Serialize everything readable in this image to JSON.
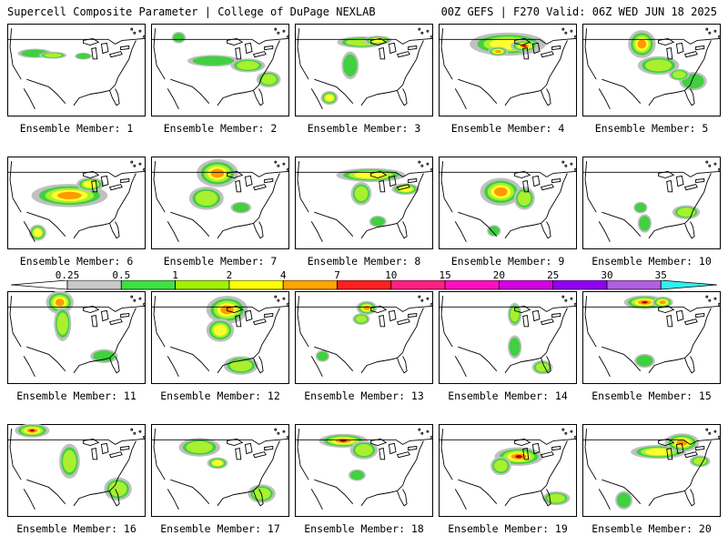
{
  "header": {
    "title": "Supercell Composite Parameter | College of DuPage NEXLAB",
    "run_info": "00Z GEFS | F270 Valid: 06Z WED JUN 18 2025"
  },
  "panels": [
    {
      "label": "Ensemble Member: 1",
      "blobs": [
        [
          0.2,
          0.32,
          0.1,
          0.04,
          1
        ],
        [
          0.33,
          0.34,
          0.08,
          0.03,
          2
        ],
        [
          0.55,
          0.35,
          0.05,
          0.03,
          1
        ]
      ]
    },
    {
      "label": "Ensemble Member: 2",
      "blobs": [
        [
          0.45,
          0.4,
          0.15,
          0.05,
          1
        ],
        [
          0.7,
          0.45,
          0.1,
          0.06,
          2
        ],
        [
          0.85,
          0.6,
          0.07,
          0.07,
          2
        ],
        [
          0.2,
          0.15,
          0.04,
          0.05,
          1
        ]
      ]
    },
    {
      "label": "Ensemble Member: 3",
      "blobs": [
        [
          0.48,
          0.2,
          0.14,
          0.05,
          2
        ],
        [
          0.6,
          0.18,
          0.08,
          0.04,
          3
        ],
        [
          0.4,
          0.45,
          0.05,
          0.12,
          1
        ],
        [
          0.25,
          0.8,
          0.05,
          0.06,
          3
        ]
      ]
    },
    {
      "label": "Ensemble Member: 4",
      "blobs": [
        [
          0.5,
          0.22,
          0.22,
          0.1,
          3
        ],
        [
          0.62,
          0.24,
          0.08,
          0.05,
          5
        ],
        [
          0.43,
          0.3,
          0.06,
          0.04,
          4
        ]
      ]
    },
    {
      "label": "Ensemble Member: 5",
      "blobs": [
        [
          0.43,
          0.22,
          0.08,
          0.12,
          4
        ],
        [
          0.55,
          0.45,
          0.12,
          0.08,
          2
        ],
        [
          0.8,
          0.62,
          0.08,
          0.08,
          1
        ],
        [
          0.7,
          0.55,
          0.06,
          0.05,
          2
        ]
      ]
    },
    {
      "label": "Ensemble Member: 6",
      "blobs": [
        [
          0.45,
          0.42,
          0.22,
          0.1,
          4
        ],
        [
          0.6,
          0.3,
          0.08,
          0.06,
          3
        ],
        [
          0.22,
          0.82,
          0.05,
          0.07,
          3
        ]
      ]
    },
    {
      "label": "Ensemble Member: 7",
      "blobs": [
        [
          0.48,
          0.18,
          0.12,
          0.12,
          4
        ],
        [
          0.4,
          0.45,
          0.1,
          0.1,
          2
        ],
        [
          0.65,
          0.55,
          0.06,
          0.05,
          1
        ]
      ]
    },
    {
      "label": "Ensemble Member: 8",
      "blobs": [
        [
          0.55,
          0.2,
          0.2,
          0.06,
          3
        ],
        [
          0.48,
          0.4,
          0.06,
          0.1,
          2
        ],
        [
          0.8,
          0.35,
          0.08,
          0.05,
          3
        ],
        [
          0.6,
          0.7,
          0.05,
          0.05,
          1
        ]
      ]
    },
    {
      "label": "Ensemble Member: 9",
      "blobs": [
        [
          0.45,
          0.38,
          0.12,
          0.12,
          4
        ],
        [
          0.62,
          0.45,
          0.06,
          0.1,
          2
        ],
        [
          0.4,
          0.8,
          0.04,
          0.05,
          1
        ]
      ]
    },
    {
      "label": "Ensemble Member: 10",
      "blobs": [
        [
          0.42,
          0.55,
          0.04,
          0.05,
          1
        ],
        [
          0.45,
          0.72,
          0.04,
          0.08,
          1
        ],
        [
          0.75,
          0.6,
          0.08,
          0.06,
          2
        ]
      ]
    },
    {
      "label": "Ensemble Member: 11",
      "blobs": [
        [
          0.38,
          0.12,
          0.08,
          0.1,
          4
        ],
        [
          0.4,
          0.35,
          0.05,
          0.15,
          2
        ],
        [
          0.7,
          0.7,
          0.08,
          0.06,
          1
        ]
      ]
    },
    {
      "label": "Ensemble Member: 12",
      "blobs": [
        [
          0.55,
          0.2,
          0.12,
          0.12,
          4
        ],
        [
          0.5,
          0.42,
          0.08,
          0.1,
          3
        ],
        [
          0.65,
          0.8,
          0.1,
          0.08,
          2
        ]
      ]
    },
    {
      "label": "Ensemble Member: 13",
      "blobs": [
        [
          0.52,
          0.18,
          0.06,
          0.06,
          4
        ],
        [
          0.48,
          0.3,
          0.05,
          0.05,
          2
        ],
        [
          0.2,
          0.7,
          0.04,
          0.05,
          1
        ]
      ]
    },
    {
      "label": "Ensemble Member: 14",
      "blobs": [
        [
          0.55,
          0.25,
          0.04,
          0.1,
          2
        ],
        [
          0.55,
          0.6,
          0.04,
          0.1,
          1
        ],
        [
          0.75,
          0.82,
          0.06,
          0.06,
          2
        ]
      ]
    },
    {
      "label": "Ensemble Member: 15",
      "blobs": [
        [
          0.45,
          0.12,
          0.12,
          0.06,
          5
        ],
        [
          0.58,
          0.12,
          0.06,
          0.05,
          4
        ],
        [
          0.45,
          0.75,
          0.06,
          0.06,
          1
        ]
      ]
    },
    {
      "label": "Ensemble Member: 16",
      "blobs": [
        [
          0.18,
          0.07,
          0.1,
          0.06,
          5
        ],
        [
          0.45,
          0.4,
          0.06,
          0.15,
          2
        ],
        [
          0.8,
          0.7,
          0.08,
          0.1,
          2
        ]
      ]
    },
    {
      "label": "Ensemble Member: 17",
      "blobs": [
        [
          0.35,
          0.25,
          0.12,
          0.08,
          2
        ],
        [
          0.48,
          0.42,
          0.06,
          0.05,
          3
        ],
        [
          0.8,
          0.75,
          0.08,
          0.08,
          2
        ]
      ]
    },
    {
      "label": "Ensemble Member: 18",
      "blobs": [
        [
          0.35,
          0.18,
          0.14,
          0.06,
          5
        ],
        [
          0.5,
          0.28,
          0.08,
          0.08,
          2
        ],
        [
          0.45,
          0.55,
          0.05,
          0.05,
          1
        ]
      ]
    },
    {
      "label": "Ensemble Member: 19",
      "blobs": [
        [
          0.58,
          0.35,
          0.14,
          0.08,
          5
        ],
        [
          0.45,
          0.45,
          0.06,
          0.08,
          2
        ],
        [
          0.85,
          0.8,
          0.08,
          0.06,
          2
        ]
      ]
    },
    {
      "label": "Ensemble Member: 20",
      "blobs": [
        [
          0.55,
          0.3,
          0.16,
          0.06,
          3
        ],
        [
          0.72,
          0.2,
          0.1,
          0.08,
          4
        ],
        [
          0.85,
          0.4,
          0.06,
          0.05,
          2
        ],
        [
          0.3,
          0.82,
          0.05,
          0.08,
          1
        ]
      ]
    }
  ],
  "colorbar": {
    "ticks": [
      "0.25",
      "0.5",
      "1",
      "2",
      "4",
      "7",
      "10",
      "15",
      "20",
      "25",
      "30",
      "35"
    ],
    "colors": [
      "#c8c8c8",
      "#40e040",
      "#a0f000",
      "#ffff00",
      "#ffa500",
      "#ff2020",
      "#ff2080",
      "#ff10c0",
      "#d000e0",
      "#9000f0",
      "#b060e0",
      "#30f0f0"
    ]
  },
  "map_colors": {
    "gray": "#c0c0c0",
    "green": "#40d040",
    "lightgreen": "#a8f030",
    "yellow": "#ffff30",
    "orange": "#ff9a00",
    "red": "#ff1a1a",
    "darkred": "#a00000"
  }
}
